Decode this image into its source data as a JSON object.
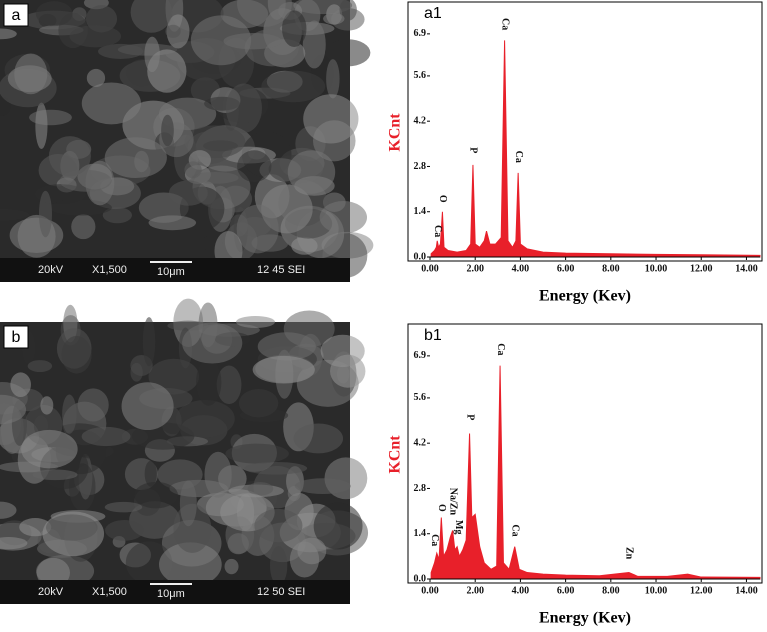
{
  "sem_images": [
    {
      "label": "a",
      "voltage": "20kV",
      "magnification": "X1,500",
      "scale": "10μm",
      "code": "12 45 SEI"
    },
    {
      "label": "b",
      "voltage": "20kV",
      "magnification": "X1,500",
      "scale": "10μm",
      "code": "12 50 SEI"
    }
  ],
  "chart_data": [
    {
      "type": "area",
      "title": "a1",
      "xlabel": "Energy (Kev)",
      "ylabel": "KCnt",
      "color": "#e8202a",
      "xlim": [
        0,
        14.6
      ],
      "ylim": [
        0,
        7.7
      ],
      "xticks": [
        {
          "value": 0,
          "label": "0.00"
        },
        {
          "value": 2,
          "label": "2.00"
        },
        {
          "value": 4,
          "label": "4.00"
        },
        {
          "value": 6,
          "label": "6.00"
        },
        {
          "value": 8,
          "label": "8.00"
        },
        {
          "value": 10,
          "label": "10.00"
        },
        {
          "value": 12,
          "label": "12.00"
        },
        {
          "value": 14,
          "label": "14.00"
        }
      ],
      "yticks": [
        {
          "value": 0,
          "label": "0.0"
        },
        1.4,
        2.8,
        4.2,
        5.6,
        6.9
      ],
      "x": [
        0.05,
        0.2,
        0.28,
        0.32,
        0.38,
        0.46,
        0.55,
        0.62,
        0.8,
        1.2,
        1.6,
        1.8,
        1.9,
        2.0,
        2.2,
        2.4,
        2.5,
        2.65,
        2.9,
        3.15,
        3.3,
        3.45,
        3.65,
        3.8,
        3.9,
        4.0,
        4.3,
        5.0,
        6.0,
        8.0,
        10.0,
        12.0,
        14.6
      ],
      "values": [
        0.1,
        0.2,
        0.3,
        0.5,
        0.3,
        0.4,
        1.4,
        0.3,
        0.2,
        0.15,
        0.2,
        0.4,
        2.85,
        0.4,
        0.3,
        0.5,
        0.8,
        0.4,
        0.4,
        0.6,
        6.7,
        0.5,
        0.3,
        0.5,
        2.6,
        0.4,
        0.25,
        0.15,
        0.12,
        0.1,
        0.08,
        0.07,
        0.05
      ],
      "annotations": [
        {
          "text": "Ca",
          "x": 0.32,
          "y": 0.8
        },
        {
          "text": "O",
          "x": 0.55,
          "y": 1.8
        },
        {
          "text": "P",
          "x": 1.9,
          "y": 3.3
        },
        {
          "text": "Ca",
          "x": 3.3,
          "y": 7.2
        },
        {
          "text": "Ca",
          "x": 3.9,
          "y": 3.1
        }
      ]
    },
    {
      "type": "area",
      "title": "b1",
      "xlabel": "Energy (Kev)",
      "ylabel": "KCnt",
      "color": "#e8202a",
      "xlim": [
        0,
        14.6
      ],
      "ylim": [
        0,
        7.7
      ],
      "xticks": [
        {
          "value": 0,
          "label": "0.00"
        },
        {
          "value": 2,
          "label": "2.00"
        },
        {
          "value": 4,
          "label": "4.00"
        },
        {
          "value": 6,
          "label": "6.00"
        },
        {
          "value": 8,
          "label": "8.00"
        },
        {
          "value": 10,
          "label": "10.00"
        },
        {
          "value": 12,
          "label": "12.00"
        },
        {
          "value": 14,
          "label": "14.00"
        }
      ],
      "yticks": [
        {
          "value": 0,
          "label": "0.0"
        },
        1.4,
        2.8,
        4.2,
        5.6,
        6.9
      ],
      "x": [
        0.05,
        0.2,
        0.3,
        0.4,
        0.5,
        0.6,
        0.75,
        0.9,
        1.0,
        1.1,
        1.2,
        1.3,
        1.45,
        1.6,
        1.75,
        1.85,
        2.0,
        2.2,
        2.4,
        2.7,
        2.95,
        3.1,
        3.25,
        3.5,
        3.75,
        3.95,
        4.3,
        5.0,
        6.0,
        7.5,
        8.8,
        9.2,
        10.5,
        11.4,
        12.0,
        14.6
      ],
      "values": [
        0.2,
        0.5,
        0.8,
        0.6,
        1.9,
        0.7,
        0.9,
        1.3,
        1.5,
        0.9,
        1.0,
        0.7,
        0.9,
        1.2,
        4.5,
        1.9,
        2.0,
        1.0,
        0.5,
        0.3,
        0.4,
        6.6,
        0.5,
        0.3,
        1.0,
        0.3,
        0.2,
        0.15,
        0.12,
        0.1,
        0.2,
        0.08,
        0.08,
        0.15,
        0.06,
        0.05
      ],
      "annotations": [
        {
          "text": "Ca",
          "x": 0.2,
          "y": 1.2
        },
        {
          "text": "O",
          "x": 0.5,
          "y": 2.2
        },
        {
          "text": "Na/Zn",
          "x": 1.0,
          "y": 2.4
        },
        {
          "text": "Mg",
          "x": 1.25,
          "y": 1.6
        },
        {
          "text": "P",
          "x": 1.75,
          "y": 5.0
        },
        {
          "text": "Ca",
          "x": 3.1,
          "y": 7.1
        },
        {
          "text": "Ca",
          "x": 3.75,
          "y": 1.5
        },
        {
          "text": "Zn",
          "x": 8.8,
          "y": 0.8
        }
      ]
    }
  ]
}
